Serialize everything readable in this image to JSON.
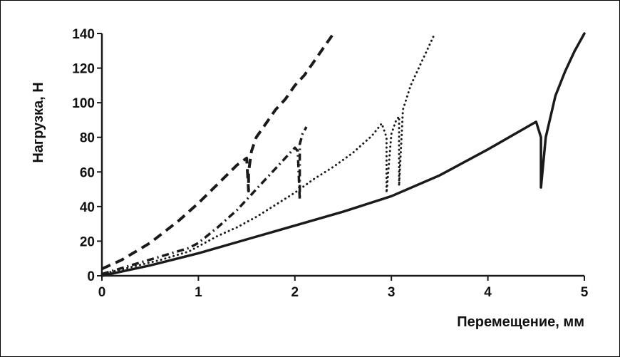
{
  "chart_data": {
    "type": "line",
    "title": "",
    "xlabel": "Перемещение, мм",
    "ylabel": "Нагрузка, Н",
    "xlim": [
      0,
      5
    ],
    "ylim": [
      0,
      140
    ],
    "xticks": [
      "0",
      "1",
      "2",
      "3",
      "4",
      "5"
    ],
    "yticks": [
      "0",
      "20",
      "40",
      "60",
      "80",
      "100",
      "120",
      "140"
    ],
    "grid": false,
    "legend": "none",
    "color": "#1a1a1a",
    "series": [
      {
        "style": "dash",
        "x": [
          0.0,
          0.2,
          0.5,
          0.8,
          1.0,
          1.2,
          1.4,
          1.5,
          1.52,
          1.52,
          1.55,
          1.6,
          1.7,
          1.8,
          1.9,
          2.0,
          2.1,
          2.2,
          2.3,
          2.4
        ],
        "y": [
          4,
          9,
          19,
          32,
          42,
          53,
          64,
          68,
          49,
          60,
          72,
          80,
          88,
          96,
          102,
          110,
          116,
          124,
          132,
          140
        ]
      },
      {
        "style": "dashdot",
        "x": [
          0.0,
          0.3,
          0.6,
          0.9,
          1.0,
          1.2,
          1.4,
          1.6,
          1.8,
          2.0,
          2.03,
          2.05,
          2.05,
          2.08,
          2.12
        ],
        "y": [
          1,
          6,
          11,
          16,
          19,
          28,
          38,
          50,
          62,
          74,
          72,
          44,
          76,
          82,
          86
        ]
      },
      {
        "style": "dots",
        "x": [
          0.0,
          0.3,
          0.6,
          0.9,
          1.0,
          1.2,
          1.4,
          1.6,
          1.8,
          2.0,
          2.2,
          2.4,
          2.6,
          2.8,
          2.9,
          2.95,
          2.95,
          3.0,
          3.05,
          3.08,
          3.08,
          3.12,
          3.2,
          3.3,
          3.4,
          3.45
        ],
        "y": [
          1,
          5,
          9,
          14,
          17,
          23,
          28,
          34,
          41,
          48,
          56,
          63,
          71,
          81,
          88,
          80,
          48,
          82,
          90,
          92,
          52,
          96,
          110,
          122,
          134,
          140
        ]
      },
      {
        "style": "solid",
        "x": [
          0.0,
          0.5,
          1.0,
          1.5,
          2.0,
          2.5,
          3.0,
          3.5,
          4.0,
          4.5,
          4.55,
          4.55,
          4.6,
          4.7,
          4.8,
          4.9,
          5.0
        ],
        "y": [
          0,
          6,
          13,
          21,
          29,
          37,
          46,
          58,
          73,
          89,
          80,
          51,
          80,
          104,
          118,
          130,
          140
        ]
      }
    ]
  }
}
